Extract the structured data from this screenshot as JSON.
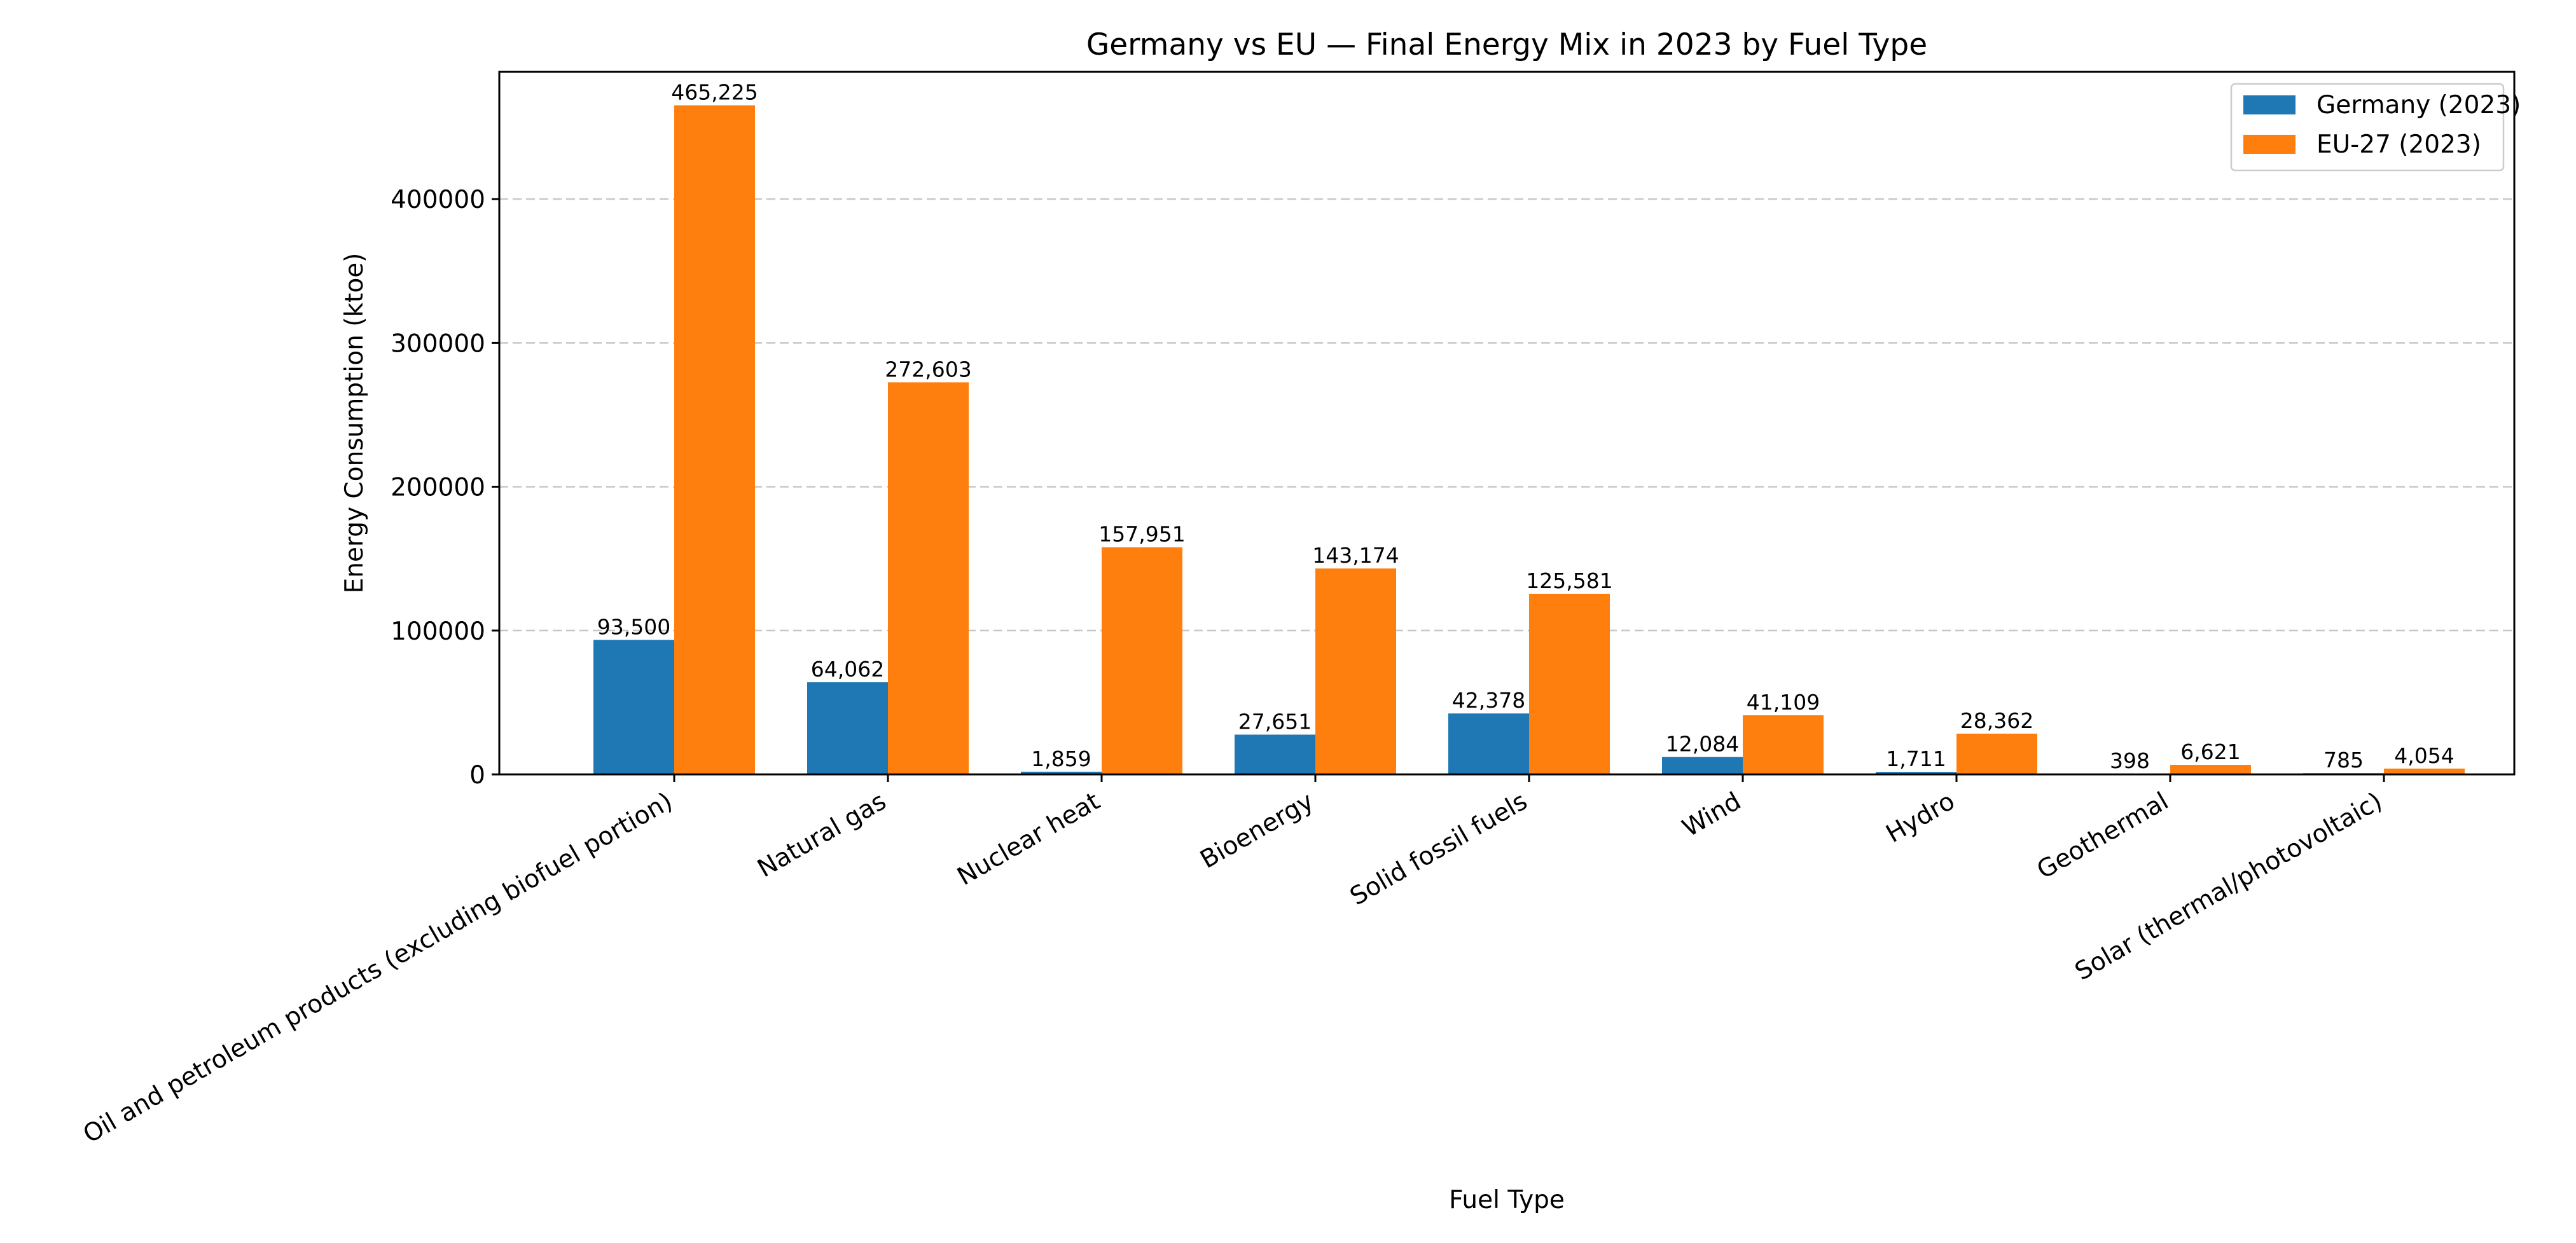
{
  "chart_data": {
    "type": "bar",
    "title": "Germany vs EU — Final Energy Mix in 2023 by Fuel Type",
    "xlabel": "Fuel Type",
    "ylabel": "Energy Consumption (ktoe)",
    "ylim": [
      0,
      488486
    ],
    "yticks": [
      0,
      100000,
      200000,
      300000,
      400000
    ],
    "ytick_labels": [
      "0",
      "100000",
      "200000",
      "300000",
      "400000"
    ],
    "grid": "y-dashed",
    "legend_position": "top-right",
    "categories": [
      "Oil and petroleum products (excluding biofuel portion)",
      "Natural gas",
      "Nuclear heat",
      "Bioenergy",
      "Solid fossil fuels",
      "Wind",
      "Hydro",
      "Geothermal",
      "Solar (thermal/photovoltaic)"
    ],
    "series": [
      {
        "name": "Germany (2023)",
        "color": "#1f77b4",
        "values": [
          93500,
          64062,
          1859,
          27651,
          42378,
          12084,
          1711,
          398,
          785
        ],
        "labels": [
          "93,500",
          "64,062",
          "1,859",
          "27,651",
          "42,378",
          "12,084",
          "1,711",
          "398",
          "785"
        ]
      },
      {
        "name": "EU-27 (2023)",
        "color": "#ff7f0e",
        "values": [
          465225,
          272603,
          157951,
          143174,
          125581,
          41109,
          28362,
          6621,
          4054
        ],
        "labels": [
          "465,225",
          "272,603",
          "157,951",
          "143,174",
          "125,581",
          "41,109",
          "28,362",
          "6,621",
          "4,054"
        ]
      }
    ]
  }
}
